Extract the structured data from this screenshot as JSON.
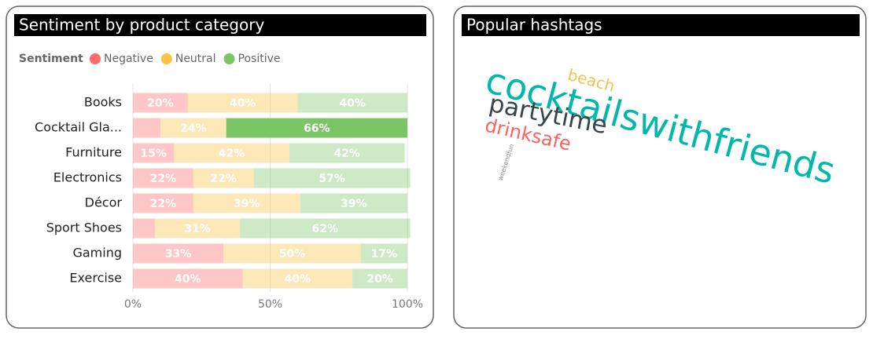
{
  "chart_data": [
    {
      "type": "stacked_barh",
      "title": "Sentiment by product category",
      "legend_title": "Sentiment",
      "categories": [
        "Books",
        "Cocktail Gla...",
        "Furniture",
        "Electronics",
        "Décor",
        "Sport Shoes",
        "Gaming",
        "Exercise"
      ],
      "series": [
        {
          "name": "Negative",
          "color": "#fd6b6b",
          "values": [
            20,
            10,
            15,
            22,
            22,
            8,
            33,
            40
          ],
          "value_labels": [
            "20%",
            null,
            "15%",
            "22%",
            "22%",
            null,
            "33%",
            "40%"
          ]
        },
        {
          "name": "Neutral",
          "color": "#fbc246",
          "values": [
            40,
            24,
            42,
            22,
            39,
            31,
            50,
            40
          ],
          "value_labels": [
            "40%",
            "24%",
            "42%",
            "22%",
            "39%",
            "31%",
            "50%",
            "40%"
          ]
        },
        {
          "name": "Positive",
          "color": "#7cc566",
          "values": [
            40,
            66,
            42,
            57,
            39,
            62,
            17,
            20
          ],
          "value_labels": [
            "40%",
            "66%",
            "42%",
            "57%",
            "39%",
            "62%",
            "17%",
            "20%"
          ]
        }
      ],
      "highlight": {
        "series": 2,
        "category": 1
      },
      "xlim": [
        0,
        100
      ],
      "xticks": [
        {
          "value": 0,
          "label": "0%"
        },
        {
          "value": 50,
          "label": "50%"
        },
        {
          "value": 100,
          "label": "100%"
        }
      ],
      "grid": true
    },
    {
      "type": "wordcloud",
      "title": "Popular hashtags",
      "words": [
        {
          "text": "cocktailswithfriends",
          "color": "#01b8aa"
        },
        {
          "text": "beach",
          "color": "#f2c15a"
        },
        {
          "text": "partytime",
          "color": "#374649"
        },
        {
          "text": "drinksafe",
          "color": "#fd625e"
        },
        {
          "text": "weekendfun",
          "color": "#8a8a8a"
        }
      ]
    }
  ]
}
